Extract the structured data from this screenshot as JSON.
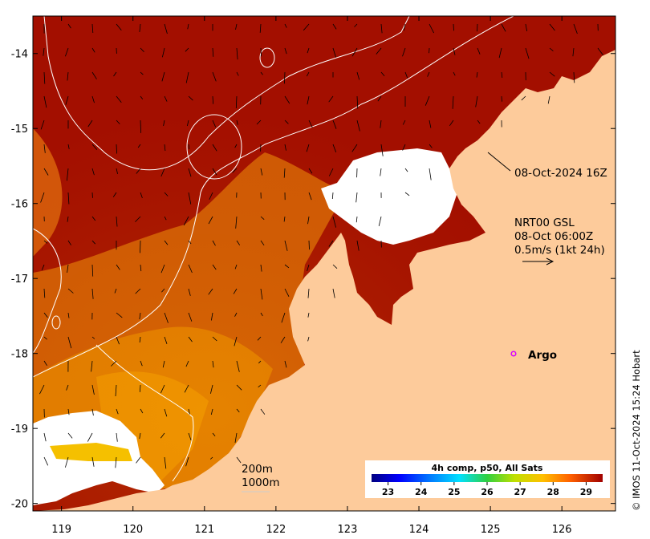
{
  "map": {
    "x_axis": {
      "ticks": [
        "119",
        "120",
        "121",
        "122",
        "123",
        "124",
        "125",
        "126"
      ],
      "range": [
        118.6,
        126.75
      ]
    },
    "y_axis": {
      "ticks": [
        "-14",
        "-15",
        "-16",
        "-17",
        "-18",
        "-19",
        "-20"
      ],
      "range": [
        -20.1,
        -13.5
      ]
    }
  },
  "annotations": {
    "time_label": "08-Oct-2024 16Z",
    "current_source": "NRT00 GSL",
    "current_time": "08-Oct 06:00Z",
    "current_scale": "0.5m/s (1kt 24h)",
    "argo_label": "Argo",
    "contour_200": "200m",
    "contour_1000": "1000m"
  },
  "colorbar": {
    "title": "4h comp, p50, All Sats",
    "ticks": [
      "23",
      "24",
      "25",
      "26",
      "27",
      "28",
      "29"
    ],
    "range": [
      22.5,
      29.5
    ]
  },
  "credit": "© IMOS 11-Oct-2024 15:24 Hobart",
  "colors": {
    "land": "#FDCB9B",
    "sst_hot": "#A30F00",
    "cloud": "#FFFFFF",
    "argo": "#D800FF"
  }
}
